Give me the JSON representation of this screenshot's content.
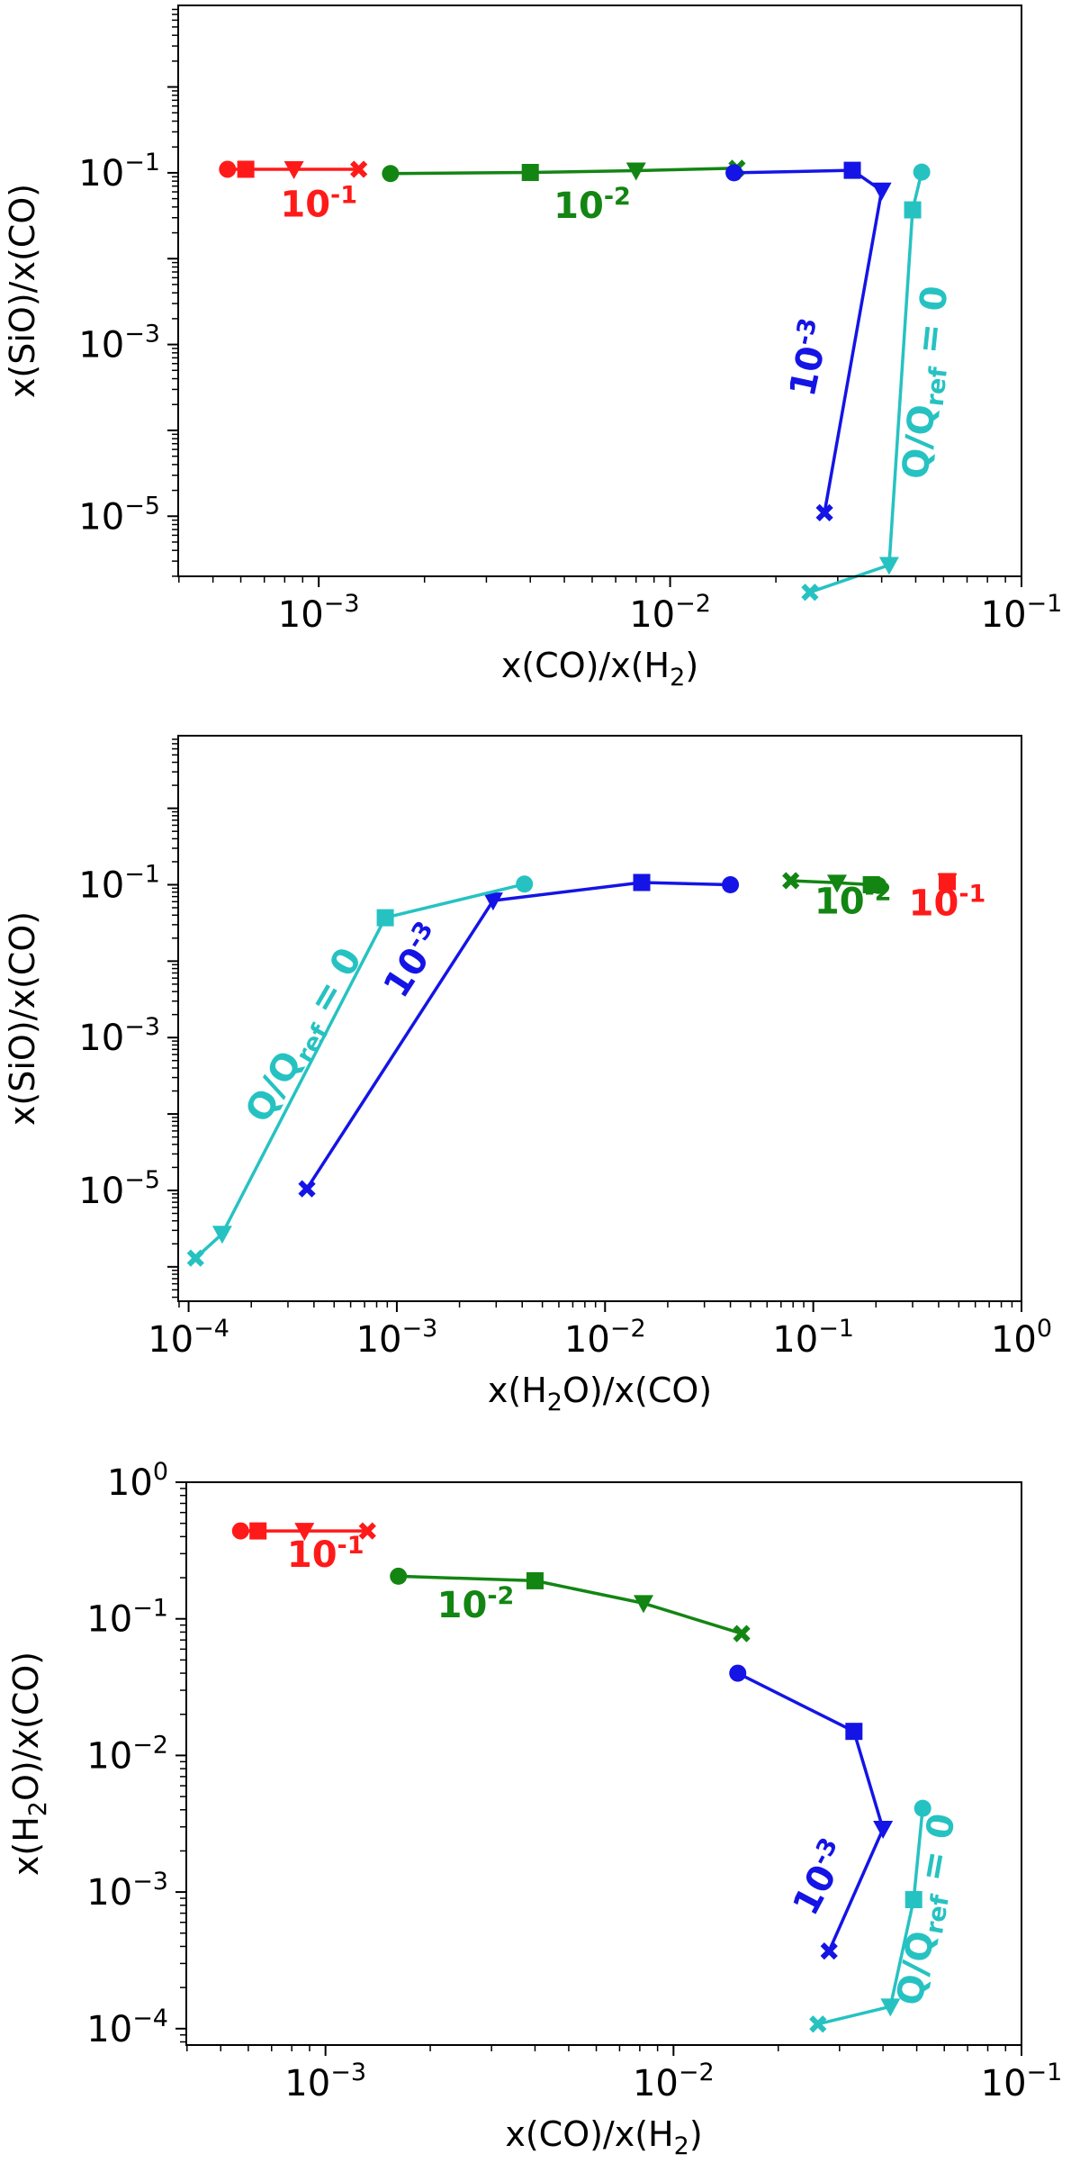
{
  "figure": {
    "colors": {
      "red": "#ff1a1a",
      "green": "#138513",
      "blue": "#1414e6",
      "cyan": "#26c2c2"
    }
  },
  "chart_data": [
    {
      "type": "line",
      "title": "",
      "xlabel_main": "x(CO)/x(H",
      "xlabel_sub": "2",
      "xlabel_end": ")",
      "ylabel_main": "x(SiO)/x(CO)",
      "xscale": "log",
      "yscale": "log",
      "xlim_log10": [
        -3.4,
        -1.0
      ],
      "ylim_log10": [
        -5.7,
        0.95
      ],
      "xticks": [
        {
          "exp": -3,
          "base": "10",
          "sup": "−3"
        },
        {
          "exp": -2,
          "base": "10",
          "sup": "−2"
        },
        {
          "exp": -1,
          "base": "10",
          "sup": "−1"
        }
      ],
      "yticks": [
        {
          "exp": -1,
          "base": "10",
          "sup": "−1"
        },
        {
          "exp": -3,
          "base": "10",
          "sup": "−3"
        },
        {
          "exp": -5,
          "base": "10",
          "sup": "−5"
        }
      ],
      "series": [
        {
          "name": "10^-1",
          "color": "red",
          "points": [
            {
              "x": 0.00055,
              "y": 0.11,
              "m": "circle"
            },
            {
              "x": 0.00062,
              "y": 0.11,
              "m": "square"
            },
            {
              "x": 0.00085,
              "y": 0.11,
              "m": "tri"
            },
            {
              "x": 0.0013,
              "y": 0.11,
              "m": "x"
            }
          ]
        },
        {
          "name": "10^-2",
          "color": "green",
          "points": [
            {
              "x": 0.0016,
              "y": 0.098,
              "m": "circle"
            },
            {
              "x": 0.004,
              "y": 0.101,
              "m": "square"
            },
            {
              "x": 0.008,
              "y": 0.106,
              "m": "tri"
            },
            {
              "x": 0.0155,
              "y": 0.113,
              "m": "x"
            }
          ]
        },
        {
          "name": "10^-3",
          "color": "blue",
          "points": [
            {
              "x": 0.0152,
              "y": 0.1,
              "m": "circle"
            },
            {
              "x": 0.033,
              "y": 0.107,
              "m": "square"
            },
            {
              "x": 0.04,
              "y": 0.062,
              "m": "tri"
            },
            {
              "x": 0.0275,
              "y": 1.1e-05,
              "m": "x"
            }
          ]
        },
        {
          "name": "Q/Qref = 0",
          "color": "cyan",
          "points": [
            {
              "x": 0.052,
              "y": 0.102,
              "m": "circle"
            },
            {
              "x": 0.049,
              "y": 0.037,
              "m": "square"
            },
            {
              "x": 0.042,
              "y": 2.7e-06,
              "m": "tri"
            },
            {
              "x": 0.025,
              "y": 1.3e-06,
              "m": "x"
            }
          ]
        }
      ],
      "annotations": [
        {
          "color": "red",
          "base": "10",
          "sup": "-1",
          "x": 0.001,
          "y": 0.031,
          "rot": 0
        },
        {
          "color": "green",
          "base": "10",
          "sup": "-2",
          "x": 0.006,
          "y": 0.03,
          "rot": 0
        },
        {
          "color": "blue",
          "base": "10",
          "sup": "-3",
          "x": 0.027,
          "y": 0.00065,
          "rot": -78
        },
        {
          "color": "cyan",
          "base": "Q/Q",
          "sub": "ref",
          "tail": " = 0",
          "x": 0.0575,
          "y": 0.00035,
          "rot": -84
        }
      ]
    },
    {
      "type": "line",
      "title": "",
      "xlabel_main": "x(H",
      "xlabel_sub": "2",
      "xlabel_end": "O)/x(CO)",
      "ylabel_main": "x(SiO)/x(CO)",
      "xscale": "log",
      "yscale": "log",
      "xlim_log10": [
        -4.05,
        0.0
      ],
      "ylim_log10": [
        -6.45,
        0.95
      ],
      "xticks": [
        {
          "exp": -4,
          "base": "10",
          "sup": "−4"
        },
        {
          "exp": -3,
          "base": "10",
          "sup": "−3"
        },
        {
          "exp": -2,
          "base": "10",
          "sup": "−2"
        },
        {
          "exp": -1,
          "base": "10",
          "sup": "−1"
        },
        {
          "exp": 0,
          "base": "10",
          "sup": "0"
        }
      ],
      "yticks": [
        {
          "exp": -1,
          "base": "10",
          "sup": "−1"
        },
        {
          "exp": -3,
          "base": "10",
          "sup": "−3"
        },
        {
          "exp": -5,
          "base": "10",
          "sup": "−5"
        }
      ],
      "series": [
        {
          "name": "10^-1",
          "color": "red",
          "points": [
            {
              "x": 0.44,
              "y": 0.11,
              "m": "circle"
            },
            {
              "x": 0.44,
              "y": 0.11,
              "m": "square"
            },
            {
              "x": 0.44,
              "y": 0.11,
              "m": "tri"
            },
            {
              "x": 0.44,
              "y": 0.11,
              "m": "x"
            }
          ]
        },
        {
          "name": "10^-2",
          "color": "green",
          "points": [
            {
              "x": 0.205,
              "y": 0.098,
              "m": "circle"
            },
            {
              "x": 0.19,
              "y": 0.1,
              "m": "square"
            },
            {
              "x": 0.13,
              "y": 0.106,
              "m": "tri"
            },
            {
              "x": 0.078,
              "y": 0.113,
              "m": "x"
            }
          ]
        },
        {
          "name": "10^-3",
          "color": "blue",
          "points": [
            {
              "x": 0.04,
              "y": 0.1,
              "m": "circle"
            },
            {
              "x": 0.015,
              "y": 0.107,
              "m": "square"
            },
            {
              "x": 0.0029,
              "y": 0.062,
              "m": "tri"
            },
            {
              "x": 0.00037,
              "y": 1.05e-05,
              "m": "x"
            }
          ]
        },
        {
          "name": "Q/Qref = 0",
          "color": "cyan",
          "points": [
            {
              "x": 0.0041,
              "y": 0.102,
              "m": "circle"
            },
            {
              "x": 0.00088,
              "y": 0.037,
              "m": "square"
            },
            {
              "x": 0.000145,
              "y": 2.7e-06,
              "m": "tri"
            },
            {
              "x": 0.000108,
              "y": 1.3e-06,
              "m": "x"
            }
          ]
        }
      ],
      "annotations": [
        {
          "color": "red",
          "base": "10",
          "sup": "-1",
          "x": 0.44,
          "y": 0.04,
          "rot": 0
        },
        {
          "color": "green",
          "base": "10",
          "sup": "-2",
          "x": 0.155,
          "y": 0.042,
          "rot": 0
        },
        {
          "color": "blue",
          "base": "10",
          "sup": "-3",
          "x": 0.00135,
          "y": 0.0082,
          "rot": -57
        },
        {
          "color": "cyan",
          "base": "Q/Q",
          "sub": "ref",
          "tail": " = 0",
          "x": 0.0004,
          "y": 0.0009,
          "rot": -60
        }
      ]
    },
    {
      "type": "line",
      "title": "",
      "xlabel_main": "x(CO)/x(H",
      "xlabel_sub": "2",
      "xlabel_end": ")",
      "ylabel_main_a": "x(H",
      "ylabel_sub": "2",
      "ylabel_main_b": "O)/x(CO)",
      "xscale": "log",
      "yscale": "log",
      "xlim_log10": [
        -3.4,
        -1.0
      ],
      "ylim_log10": [
        -4.12,
        0.0
      ],
      "xticks": [
        {
          "exp": -3,
          "base": "10",
          "sup": "−3"
        },
        {
          "exp": -2,
          "base": "10",
          "sup": "−2"
        },
        {
          "exp": -1,
          "base": "10",
          "sup": "−1"
        }
      ],
      "yticks": [
        {
          "exp": 0,
          "base": "10",
          "sup": "0"
        },
        {
          "exp": -1,
          "base": "10",
          "sup": "−1"
        },
        {
          "exp": -2,
          "base": "10",
          "sup": "−2"
        },
        {
          "exp": -3,
          "base": "10",
          "sup": "−3"
        },
        {
          "exp": -4,
          "base": "10",
          "sup": "−4"
        }
      ],
      "series": [
        {
          "name": "10^-1",
          "color": "red",
          "points": [
            {
              "x": 0.00057,
              "y": 0.44,
              "m": "circle"
            },
            {
              "x": 0.00064,
              "y": 0.44,
              "m": "square"
            },
            {
              "x": 0.00087,
              "y": 0.44,
              "m": "tri"
            },
            {
              "x": 0.00132,
              "y": 0.44,
              "m": "x"
            }
          ]
        },
        {
          "name": "10^-2",
          "color": "green",
          "points": [
            {
              "x": 0.00162,
              "y": 0.205,
              "m": "circle"
            },
            {
              "x": 0.004,
              "y": 0.19,
              "m": "square"
            },
            {
              "x": 0.0082,
              "y": 0.13,
              "m": "tri"
            },
            {
              "x": 0.0157,
              "y": 0.078,
              "m": "x"
            }
          ]
        },
        {
          "name": "10^-3",
          "color": "blue",
          "points": [
            {
              "x": 0.0153,
              "y": 0.04,
              "m": "circle"
            },
            {
              "x": 0.033,
              "y": 0.015,
              "m": "square"
            },
            {
              "x": 0.04,
              "y": 0.0029,
              "m": "tri"
            },
            {
              "x": 0.028,
              "y": 0.00037,
              "m": "x"
            }
          ]
        },
        {
          "name": "Q/Qref = 0",
          "color": "cyan",
          "points": [
            {
              "x": 0.052,
              "y": 0.0041,
              "m": "circle"
            },
            {
              "x": 0.049,
              "y": 0.00088,
              "m": "square"
            },
            {
              "x": 0.042,
              "y": 0.000145,
              "m": "tri"
            },
            {
              "x": 0.026,
              "y": 0.000108,
              "m": "x"
            }
          ]
        }
      ],
      "annotations": [
        {
          "color": "red",
          "base": "10",
          "sup": "-1",
          "x": 0.001,
          "y": 0.24,
          "rot": 0
        },
        {
          "color": "green",
          "base": "10",
          "sup": "-2",
          "x": 0.0027,
          "y": 0.103,
          "rot": 0
        },
        {
          "color": "blue",
          "base": "10",
          "sup": "-3",
          "x": 0.0285,
          "y": 0.00115,
          "rot": -62
        },
        {
          "color": "cyan",
          "base": "Q/Q",
          "sub": "ref",
          "tail": " = 0",
          "x": 0.0575,
          "y": 0.00072,
          "rot": -80
        }
      ]
    }
  ]
}
